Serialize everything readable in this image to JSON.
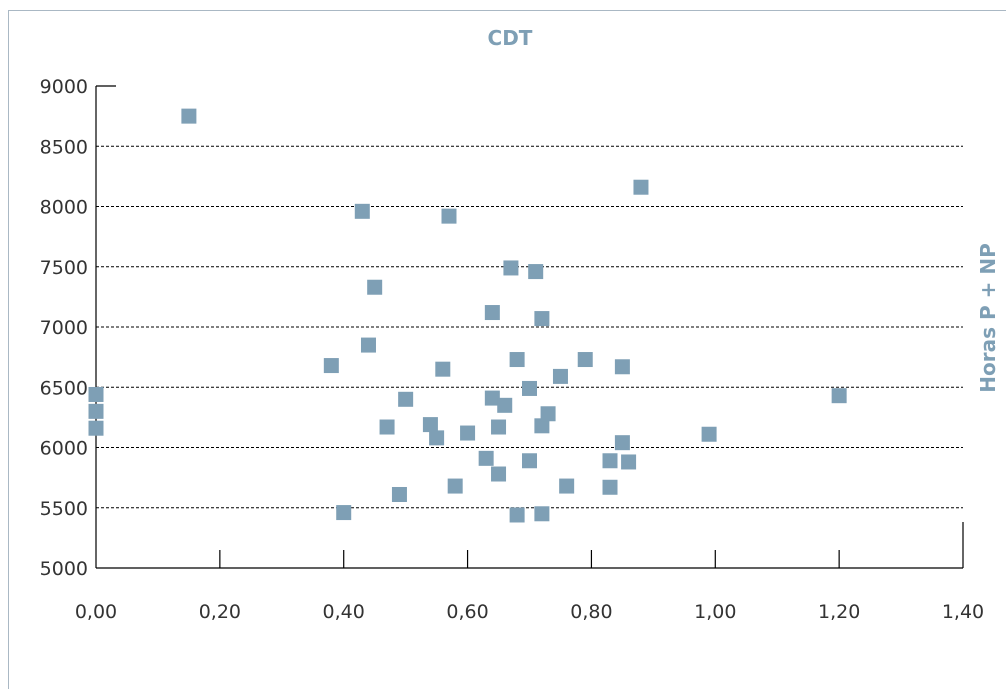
{
  "chart_data": {
    "type": "scatter",
    "title": "CDT",
    "xlabel": "",
    "ylabel": "Horas P + NP",
    "xlim": [
      0,
      1.4
    ],
    "ylim": [
      5000,
      9000
    ],
    "x_ticks": [
      "0,00",
      "0,20",
      "0,40",
      "0,60",
      "0,80",
      "1,00",
      "1,20",
      "1,40"
    ],
    "y_ticks": [
      "5000",
      "5500",
      "6000",
      "6500",
      "7000",
      "7500",
      "8000",
      "8500",
      "9000"
    ],
    "x_tick_values": [
      0,
      0.2,
      0.4,
      0.6,
      0.8,
      1.0,
      1.2,
      1.4
    ],
    "y_tick_values": [
      5000,
      5500,
      6000,
      6500,
      7000,
      7500,
      8000,
      8500,
      9000
    ],
    "grid": "horizontal dashed",
    "legend": "none",
    "marker": "square",
    "colors": {
      "title": "#7e9fb5",
      "marker": "#7e9fb5",
      "ylabel": "#7e9fb5",
      "axis": "#000000",
      "grid": "#000000"
    },
    "series": [
      {
        "points": [
          [
            0.0,
            6440
          ],
          [
            0.0,
            6300
          ],
          [
            0.0,
            6160
          ],
          [
            0.15,
            8750
          ],
          [
            0.38,
            6680
          ],
          [
            0.4,
            5460
          ],
          [
            0.43,
            7960
          ],
          [
            0.44,
            6850
          ],
          [
            0.45,
            7330
          ],
          [
            0.47,
            6170
          ],
          [
            0.49,
            5610
          ],
          [
            0.5,
            6400
          ],
          [
            0.54,
            6190
          ],
          [
            0.55,
            6080
          ],
          [
            0.56,
            6650
          ],
          [
            0.57,
            7920
          ],
          [
            0.58,
            5680
          ],
          [
            0.6,
            6120
          ],
          [
            0.63,
            5910
          ],
          [
            0.64,
            6410
          ],
          [
            0.64,
            7120
          ],
          [
            0.65,
            6170
          ],
          [
            0.65,
            5780
          ],
          [
            0.66,
            6350
          ],
          [
            0.67,
            7490
          ],
          [
            0.68,
            6730
          ],
          [
            0.68,
            5440
          ],
          [
            0.7,
            6490
          ],
          [
            0.7,
            5890
          ],
          [
            0.71,
            7460
          ],
          [
            0.72,
            6180
          ],
          [
            0.72,
            5450
          ],
          [
            0.72,
            7070
          ],
          [
            0.73,
            6280
          ],
          [
            0.75,
            6590
          ],
          [
            0.76,
            5680
          ],
          [
            0.79,
            6730
          ],
          [
            0.83,
            5890
          ],
          [
            0.83,
            5670
          ],
          [
            0.85,
            6670
          ],
          [
            0.85,
            6040
          ],
          [
            0.86,
            5880
          ],
          [
            0.88,
            8160
          ],
          [
            0.99,
            6110
          ],
          [
            1.2,
            6430
          ]
        ]
      }
    ]
  }
}
